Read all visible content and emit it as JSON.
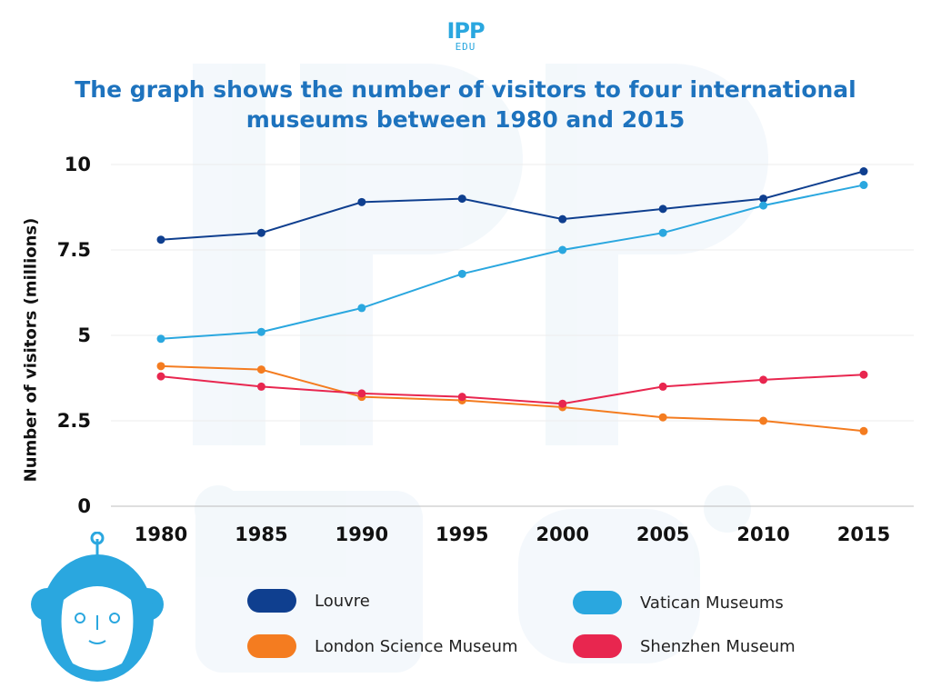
{
  "logo": {
    "main": "IPP",
    "sub": "EDU"
  },
  "chart_data": {
    "type": "line",
    "title": "The graph shows the number of visitors to four international museums between 1980 and 2015",
    "xlabel": "",
    "ylabel": "Number of visitors (millions)",
    "categories": [
      "1980",
      "1985",
      "1990",
      "1995",
      "2000",
      "2005",
      "2010",
      "2015"
    ],
    "ylim": [
      0,
      10
    ],
    "yticks": [
      0,
      2.5,
      5,
      7.5,
      10
    ],
    "ytick_labels": [
      "0",
      "2.5",
      "5",
      "7.5",
      "10"
    ],
    "grid": true,
    "legend_position": "bottom",
    "series": [
      {
        "name": "Louvre",
        "color": "#0f3f8f",
        "values": [
          7.8,
          8.0,
          8.9,
          9.0,
          8.4,
          8.7,
          9.0,
          9.8
        ]
      },
      {
        "name": "Vatican Museums",
        "color": "#2aa7df",
        "values": [
          4.9,
          5.1,
          5.8,
          6.8,
          7.5,
          8.0,
          8.8,
          9.4
        ]
      },
      {
        "name": "London Science Museum",
        "color": "#f47c20",
        "values": [
          4.1,
          4.0,
          3.2,
          3.1,
          2.9,
          2.6,
          2.5,
          2.2
        ]
      },
      {
        "name": "Shenzhen Museum",
        "color": "#e8264f",
        "values": [
          3.8,
          3.5,
          3.3,
          3.2,
          3.0,
          3.5,
          3.7,
          3.85
        ]
      }
    ]
  }
}
